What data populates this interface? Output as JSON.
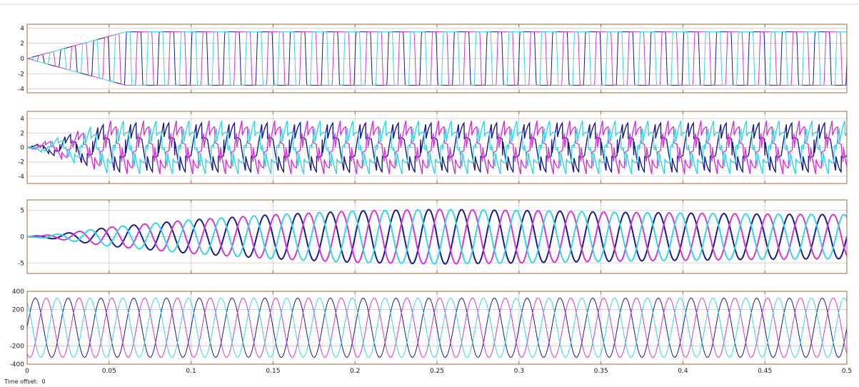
{
  "scope": {
    "time_offset_label": "Time offset:",
    "time_offset_value": "0"
  },
  "colors": {
    "background": "#ffffff",
    "frame": "#9c6a3c",
    "grid": "#d3d3d3",
    "phase_a": "#1a1a8c",
    "phase_b": "#d633d6",
    "phase_c": "#33d6e6"
  },
  "x_axis": {
    "range": [
      0,
      0.5
    ],
    "ticks": [
      0,
      0.05,
      0.1,
      0.15,
      0.2,
      0.25,
      0.3,
      0.35,
      0.4,
      0.45,
      0.5
    ],
    "tick_labels": [
      "0",
      "0.05",
      "0.1",
      "0.15",
      "0.2",
      "0.25",
      "0.3",
      "0.35",
      "0.4",
      "0.45",
      "0.5"
    ]
  },
  "chart_data": [
    {
      "type": "line",
      "title": "",
      "xlabel": "",
      "ylabel": "",
      "xlim": [
        0,
        0.5
      ],
      "ylim": [
        -4.5,
        4.5
      ],
      "yticks": [
        -4,
        -2,
        0,
        2,
        4
      ],
      "ytick_labels": [
        "-4",
        "-2",
        "0",
        "2",
        "4"
      ],
      "grid": true,
      "waveform": "square",
      "frequency_hz": 50,
      "amplitude": 3.5,
      "ramp_time_s": 0.06,
      "series": [
        {
          "phase_deg": 0,
          "color": "#1a1a8c"
        },
        {
          "phase_deg": -120,
          "color": "#d633d6"
        },
        {
          "phase_deg": 120,
          "color": "#33d6e6"
        }
      ]
    },
    {
      "type": "line",
      "title": "",
      "xlabel": "",
      "ylabel": "",
      "xlim": [
        0,
        0.5
      ],
      "ylim": [
        -5,
        5
      ],
      "yticks": [
        -4,
        -2,
        0,
        2,
        4
      ],
      "ytick_labels": [
        "-4",
        "-2",
        "0",
        "2",
        "4"
      ],
      "grid": true,
      "waveform": "sine-with-ripple",
      "frequency_hz": 50,
      "amplitude": 2.7,
      "ripple_amplitude": 1.1,
      "ramp_time_s": 0.05,
      "series": [
        {
          "phase_deg": 0,
          "color": "#1a1a8c"
        },
        {
          "phase_deg": -120,
          "color": "#d633d6"
        },
        {
          "phase_deg": 120,
          "color": "#33d6e6"
        }
      ]
    },
    {
      "type": "line",
      "title": "",
      "xlabel": "",
      "ylabel": "",
      "xlim": [
        0,
        0.5
      ],
      "ylim": [
        -7,
        7
      ],
      "yticks": [
        -5,
        0,
        5
      ],
      "ytick_labels": [
        "-5",
        "0",
        "5"
      ],
      "grid": true,
      "waveform": "sine",
      "frequency_hz": 50,
      "amplitude": 5,
      "envelope_points": [
        [
          0,
          0
        ],
        [
          0.02,
          0.5
        ],
        [
          0.05,
          1.8
        ],
        [
          0.1,
          3.2
        ],
        [
          0.15,
          4.2
        ],
        [
          0.2,
          4.9
        ],
        [
          0.25,
          5.2
        ],
        [
          0.3,
          5.0
        ],
        [
          0.35,
          4.7
        ],
        [
          0.4,
          4.5
        ],
        [
          0.45,
          4.3
        ],
        [
          0.5,
          4.2
        ]
      ],
      "series": [
        {
          "phase_deg": 0,
          "color": "#1a1a8c"
        },
        {
          "phase_deg": -120,
          "color": "#d633d6"
        },
        {
          "phase_deg": 120,
          "color": "#33d6e6"
        }
      ]
    },
    {
      "type": "line",
      "title": "",
      "xlabel": "",
      "ylabel": "",
      "xlim": [
        0,
        0.5
      ],
      "ylim": [
        -400,
        400
      ],
      "yticks": [
        -400,
        -200,
        0,
        200,
        400
      ],
      "ytick_labels": [
        "-400",
        "-200",
        "0",
        "200",
        "400"
      ],
      "grid": true,
      "waveform": "sine",
      "frequency_hz": 50,
      "amplitude": 325,
      "series": [
        {
          "phase_deg": 0,
          "color": "#1a1a8c"
        },
        {
          "phase_deg": -120,
          "color": "#d633d6"
        },
        {
          "phase_deg": 120,
          "color": "#33d6e6"
        }
      ]
    }
  ]
}
